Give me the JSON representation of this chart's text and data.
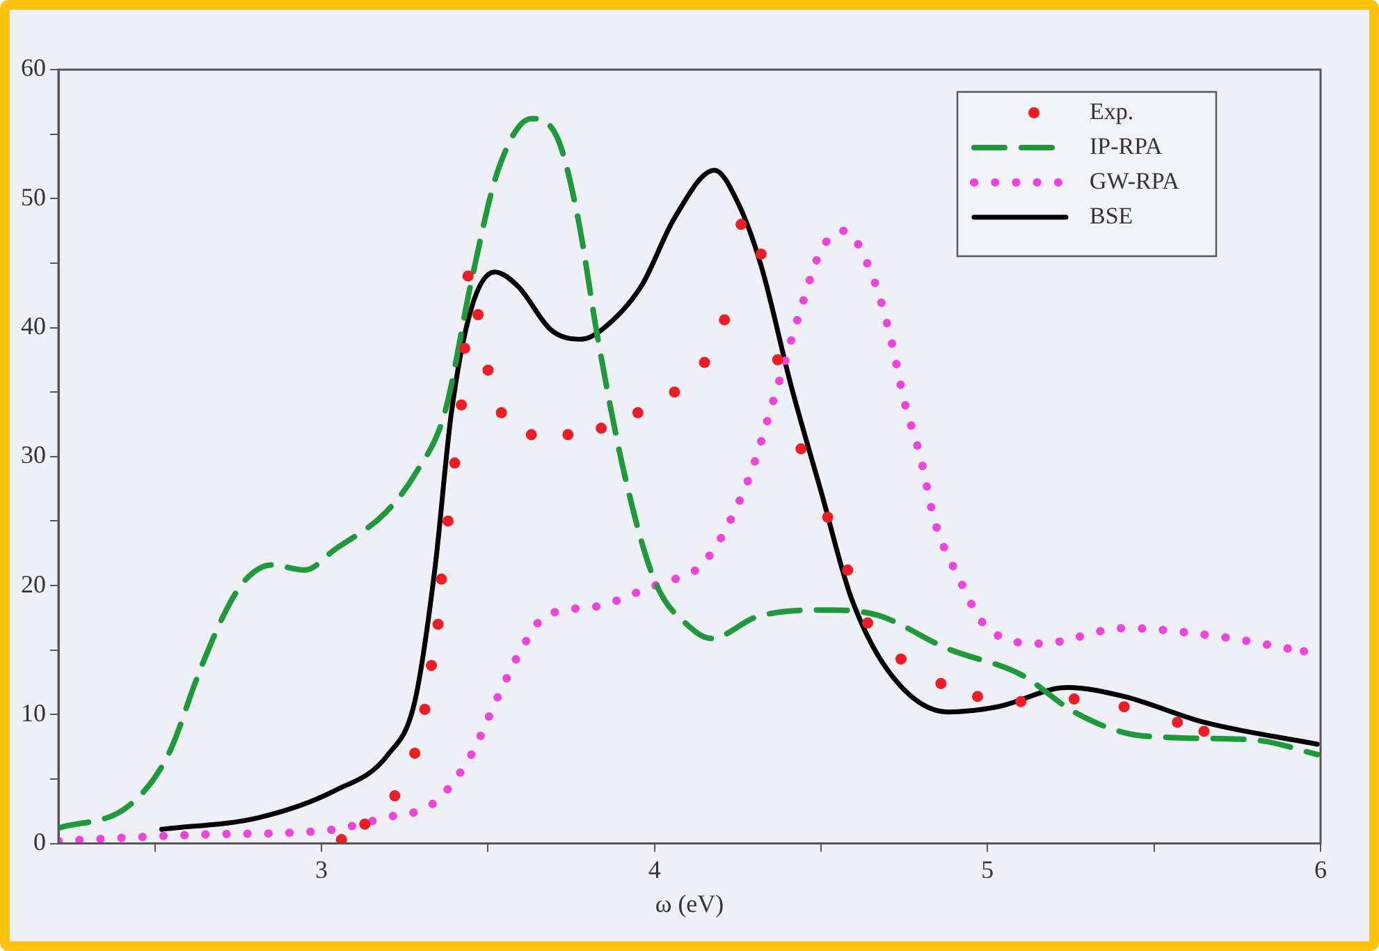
{
  "chart_data": {
    "type": "line",
    "xlabel": "ω (eV)",
    "xlim": [
      2.21,
      6
    ],
    "ylim": [
      0,
      60
    ],
    "xticks": [
      {
        "value": 2.5,
        "label": null
      },
      3,
      {
        "value": 3.5,
        "label": null
      },
      4,
      {
        "value": 4.5,
        "label": null
      },
      5,
      {
        "value": 5.5,
        "label": null
      },
      6
    ],
    "yticks": [
      0,
      {
        "value": 5,
        "label": null
      },
      10,
      {
        "value": 15,
        "label": null
      },
      20,
      {
        "value": 25,
        "label": null
      },
      30,
      {
        "value": 35,
        "label": null
      },
      40,
      {
        "value": 45,
        "label": null
      },
      50,
      {
        "value": 55,
        "label": null
      },
      60
    ],
    "grid": false,
    "legend": "top right",
    "series": [
      {
        "name": "Exp.",
        "type": "scatter",
        "marker": "circle",
        "color": "#ee1c25",
        "x": [
          3.06,
          3.13,
          3.22,
          3.28,
          3.31,
          3.33,
          3.35,
          3.36,
          3.38,
          3.4,
          3.42,
          3.43,
          3.44,
          3.47,
          3.5,
          3.54,
          3.63,
          3.74,
          3.84,
          3.95,
          4.06,
          4.15,
          4.21,
          4.26,
          4.32,
          4.37,
          4.44,
          4.52,
          4.58,
          4.64,
          4.74,
          4.86,
          4.97,
          5.1,
          5.26,
          5.41,
          5.57,
          5.65
        ],
        "values": [
          0.3,
          1.5,
          3.7,
          7,
          10.4,
          13.8,
          17,
          20.5,
          25,
          29.5,
          34,
          38.4,
          44,
          41,
          36.7,
          33.4,
          31.7,
          31.7,
          32.2,
          33.4,
          35,
          37.3,
          40.6,
          48,
          45.7,
          37.5,
          30.6,
          25.3,
          21.2,
          17.1,
          14.3,
          12.4,
          11.4,
          11,
          11.2,
          10.6,
          9.4,
          8.7
        ]
      },
      {
        "name": "IP-RPA",
        "type": "line",
        "line_style": "dashed",
        "marker": "none",
        "color": "#1e9a3a",
        "x": [
          2.21,
          2.42,
          2.54,
          2.63,
          2.71,
          2.77,
          2.85,
          2.95,
          3.04,
          3.19,
          3.28,
          3.37,
          3.45,
          3.53,
          3.63,
          3.71,
          3.77,
          3.83,
          3.91,
          4.0,
          4.11,
          4.17,
          4.31,
          4.52,
          4.67,
          4.88,
          5.1,
          5.26,
          5.41,
          5.57,
          5.81,
          5.99
        ],
        "values": [
          1.2,
          2.9,
          6.9,
          13.1,
          17.9,
          20.4,
          21.6,
          21.2,
          22.8,
          25.6,
          28.6,
          33.4,
          43.6,
          52.2,
          56.2,
          54.6,
          48.5,
          39.1,
          28.6,
          20.4,
          16.7,
          15.9,
          17.6,
          18.1,
          17.7,
          15.1,
          13.1,
          10.2,
          8.6,
          8.2,
          8,
          6.9
        ]
      },
      {
        "name": "GW-RPA",
        "type": "line",
        "line_style": "dotted",
        "marker": "none",
        "color": "#ee44dd",
        "x": [
          2.21,
          2.65,
          3.01,
          3.19,
          3.34,
          3.45,
          3.53,
          3.61,
          3.67,
          3.83,
          3.99,
          4.07,
          4.15,
          4.28,
          4.36,
          4.44,
          4.5,
          4.57,
          4.66,
          4.71,
          4.75,
          4.8,
          4.84,
          4.91,
          5.0,
          5.16,
          5.41,
          5.68,
          5.95
        ],
        "values": [
          0.2,
          0.7,
          1,
          2,
          3.2,
          6.9,
          11.4,
          15.5,
          17.6,
          18.4,
          19.9,
          20.6,
          21.8,
          28.1,
          34.6,
          41.5,
          46,
          47.5,
          43.6,
          39.1,
          34.3,
          29.8,
          25.1,
          20.8,
          16.7,
          15.5,
          16.7,
          16.1,
          14.9
        ]
      },
      {
        "name": "BSE",
        "type": "line",
        "line_style": "solid",
        "marker": "none",
        "color": "#000000",
        "x": [
          2.52,
          2.81,
          3.04,
          3.2,
          3.28,
          3.34,
          3.39,
          3.45,
          3.52,
          3.59,
          3.69,
          3.78,
          3.84,
          3.96,
          4.06,
          4.18,
          4.25,
          4.32,
          4.41,
          4.5,
          4.59,
          4.71,
          4.88,
          5.03,
          5.24,
          5.41,
          5.65,
          5.99
        ],
        "values": [
          1.1,
          2,
          4.1,
          6.9,
          11,
          21.2,
          33.4,
          41.5,
          44.3,
          43.2,
          39.8,
          39.1,
          39.8,
          43.2,
          48.5,
          52.2,
          49.7,
          44.8,
          35.5,
          27.3,
          19.1,
          13.1,
          10.2,
          10.6,
          12.1,
          11.4,
          9.4,
          7.7
        ]
      }
    ]
  }
}
